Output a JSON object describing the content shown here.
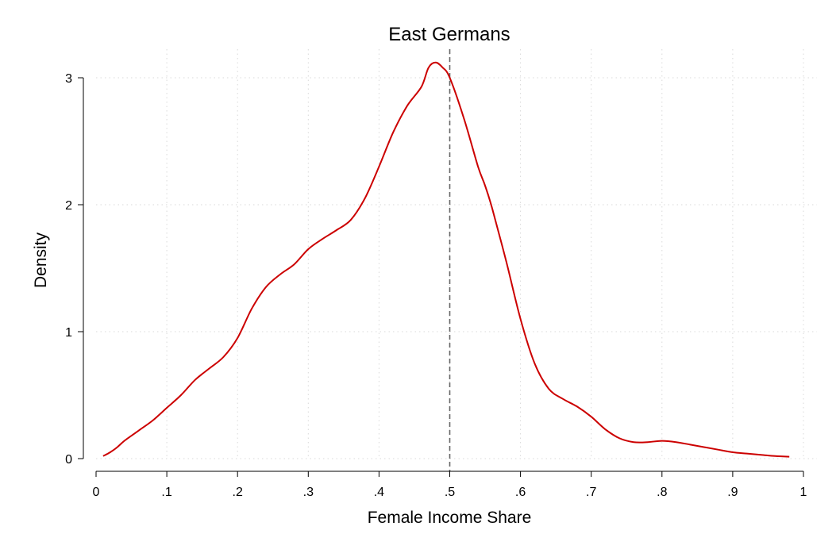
{
  "chart_data": {
    "type": "line",
    "title": "East Germans",
    "xlabel": "Female Income Share",
    "ylabel": "Density",
    "xlim": [
      0,
      1
    ],
    "ylim": [
      0,
      3
    ],
    "x_ticks": [
      "0",
      ".1",
      ".2",
      ".3",
      ".4",
      ".5",
      ".6",
      ".7",
      ".8",
      ".9",
      "1"
    ],
    "x_tick_values": [
      0,
      0.1,
      0.2,
      0.3,
      0.4,
      0.5,
      0.6,
      0.7,
      0.8,
      0.9,
      1
    ],
    "y_ticks": [
      "0",
      "1",
      "2",
      "3"
    ],
    "y_tick_values": [
      0,
      1,
      2,
      3
    ],
    "grid": true,
    "reference_line": {
      "x": 0.5,
      "style": "dashed",
      "color": "#666666"
    },
    "series": [
      {
        "color": "#cc0000",
        "x": [
          0.01,
          0.02,
          0.03,
          0.04,
          0.06,
          0.08,
          0.1,
          0.12,
          0.14,
          0.16,
          0.18,
          0.2,
          0.22,
          0.24,
          0.26,
          0.28,
          0.3,
          0.32,
          0.34,
          0.36,
          0.38,
          0.4,
          0.42,
          0.44,
          0.46,
          0.47,
          0.48,
          0.49,
          0.5,
          0.52,
          0.54,
          0.55,
          0.56,
          0.58,
          0.6,
          0.62,
          0.64,
          0.66,
          0.68,
          0.7,
          0.72,
          0.74,
          0.76,
          0.78,
          0.8,
          0.82,
          0.84,
          0.86,
          0.88,
          0.9,
          0.92,
          0.94,
          0.96,
          0.98
        ],
        "y": [
          0.02,
          0.05,
          0.09,
          0.14,
          0.22,
          0.3,
          0.4,
          0.5,
          0.62,
          0.71,
          0.8,
          0.95,
          1.18,
          1.35,
          1.45,
          1.53,
          1.65,
          1.73,
          1.8,
          1.88,
          2.05,
          2.3,
          2.57,
          2.78,
          2.93,
          3.08,
          3.12,
          3.08,
          3.0,
          2.68,
          2.3,
          2.15,
          1.97,
          1.55,
          1.1,
          0.75,
          0.55,
          0.47,
          0.41,
          0.33,
          0.23,
          0.16,
          0.13,
          0.13,
          0.14,
          0.13,
          0.11,
          0.09,
          0.07,
          0.05,
          0.04,
          0.03,
          0.02,
          0.015
        ]
      }
    ]
  }
}
